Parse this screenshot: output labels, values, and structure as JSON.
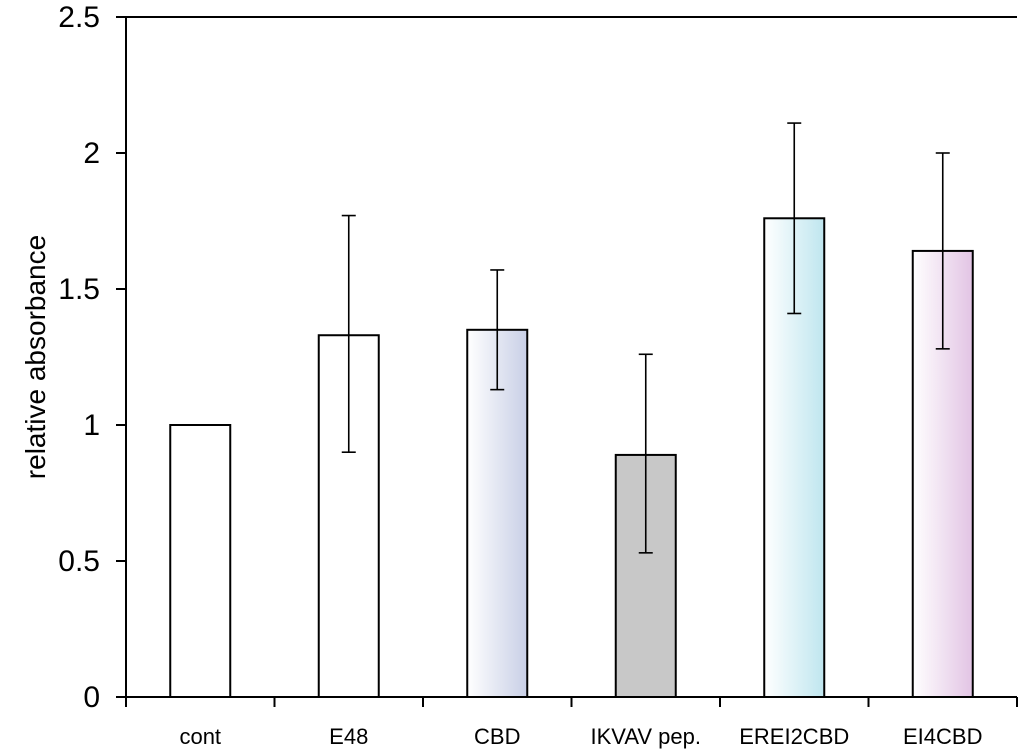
{
  "chart_data": {
    "type": "bar",
    "title": "",
    "xlabel": "",
    "ylabel": "relative absorbance",
    "ylim": [
      0,
      2.5
    ],
    "yticks": [
      "0",
      "0.5",
      "1",
      "1.5",
      "2",
      "2.5"
    ],
    "categories": [
      "cont",
      "E48",
      "CBD",
      "IKVAV pep.",
      "EREI2CBD",
      "EI4CBD"
    ],
    "values": [
      1.0,
      1.33,
      1.35,
      0.89,
      1.76,
      1.64
    ],
    "error_low": [
      1.0,
      0.9,
      1.13,
      0.53,
      1.41,
      1.28
    ],
    "error_high": [
      1.0,
      1.77,
      1.57,
      1.26,
      2.11,
      2.0
    ],
    "bar_fills": [
      {
        "type": "solid",
        "color": "#ffffff"
      },
      {
        "type": "solid",
        "color": "#ffffff"
      },
      {
        "type": "gradient",
        "from": "#ffffff",
        "to": "#c8cfe6"
      },
      {
        "type": "solid",
        "color": "#c8c8c8"
      },
      {
        "type": "gradient",
        "from": "#ffffff",
        "to": "#bfe6ef"
      },
      {
        "type": "gradient",
        "from": "#ffffff",
        "to": "#e2c4e4"
      }
    ],
    "grid": false,
    "legend": "none"
  }
}
